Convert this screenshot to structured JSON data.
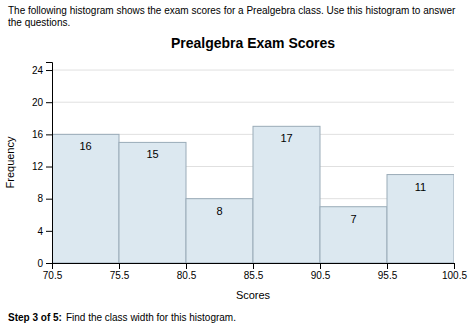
{
  "chart_data": {
    "type": "histogram",
    "title": "Prealgebra Exam Scores",
    "subtitle": "The following histogram shows the exam scores for a Prealgebra class. Use this histogram to answer the questions.",
    "annotations": [
      "Step 3 of 5:",
      "Find the class width for this histogram."
    ],
    "x_label": "Scores",
    "y_label": "Frequency",
    "bins": [
      70.5,
      75.5,
      80.5,
      85.5,
      90.5,
      95.5,
      100.5
    ],
    "values": [
      16,
      15,
      8,
      17,
      7,
      11
    ],
    "color": "#dce8f0",
    "xlim": [
      70.5,
      100.5
    ],
    "xticks": [
      70.5,
      75.5,
      80.5,
      85.5,
      90.5,
      95.5,
      100.5
    ],
    "ylim": [
      0,
      25
    ],
    "yticks": [
      0,
      4,
      8,
      12,
      16,
      20,
      24
    ],
    "grid": true,
    "data_labels": true
  }
}
